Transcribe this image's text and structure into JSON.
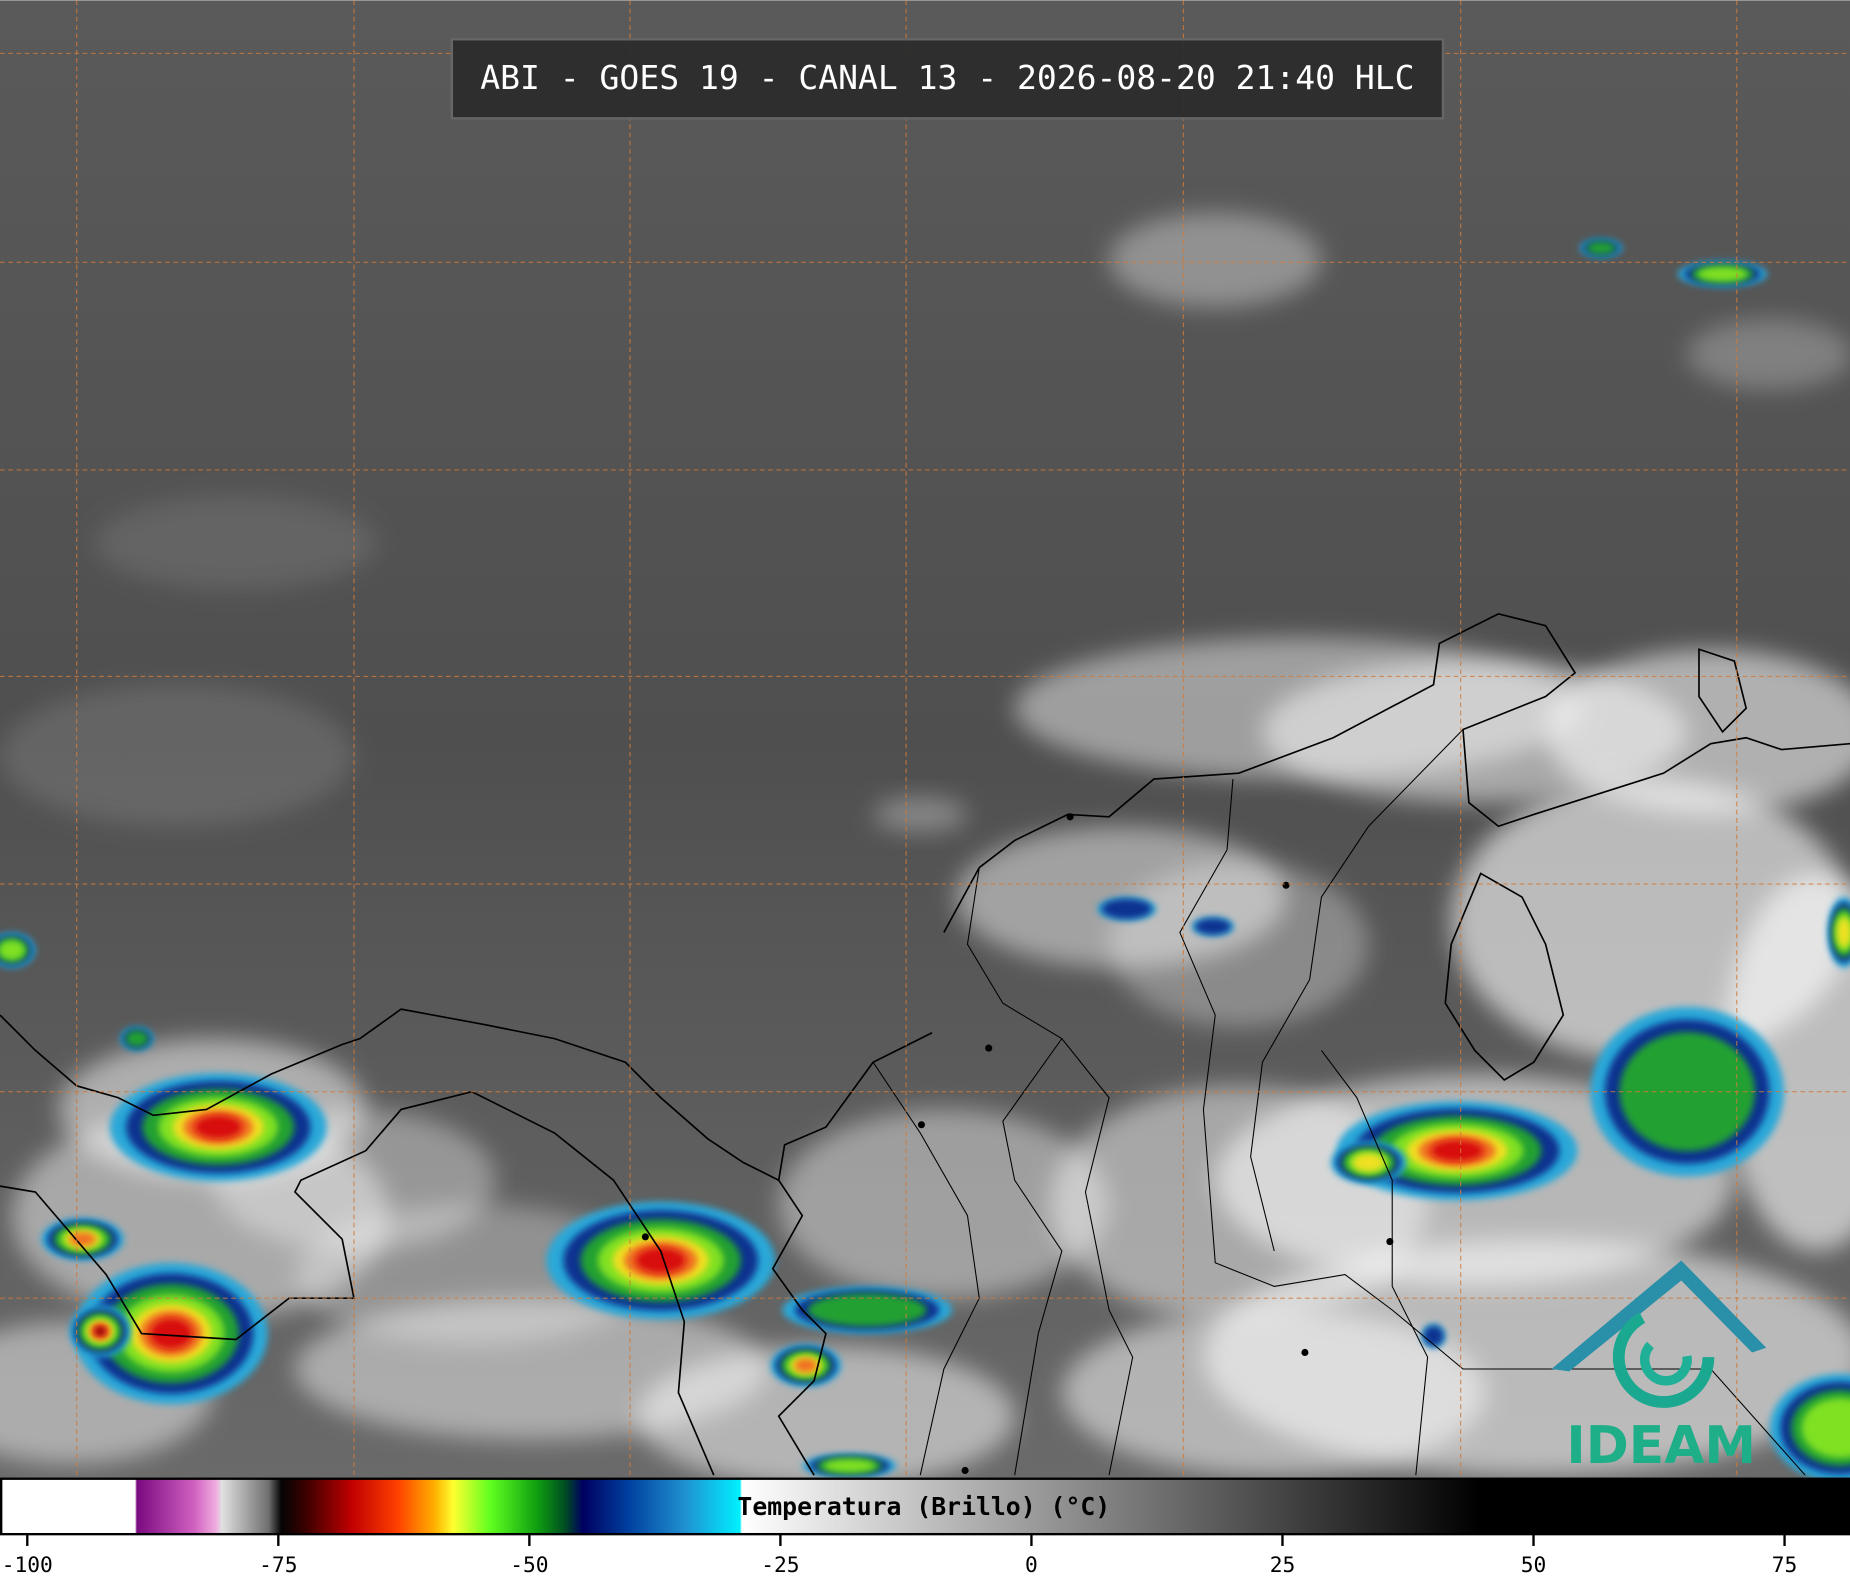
{
  "header": {
    "title": "ABI - GOES 19 - CANAL 13 - 2026-08-20 21:40 HLC"
  },
  "colorbar": {
    "label": "Temperatura (Brillo) (°C)",
    "lim": [
      -102.6,
      81.4
    ],
    "ticks": [
      -100,
      -75,
      -50,
      -25,
      0,
      25,
      50,
      75
    ]
  },
  "logo": {
    "text": "IDEAM"
  }
}
